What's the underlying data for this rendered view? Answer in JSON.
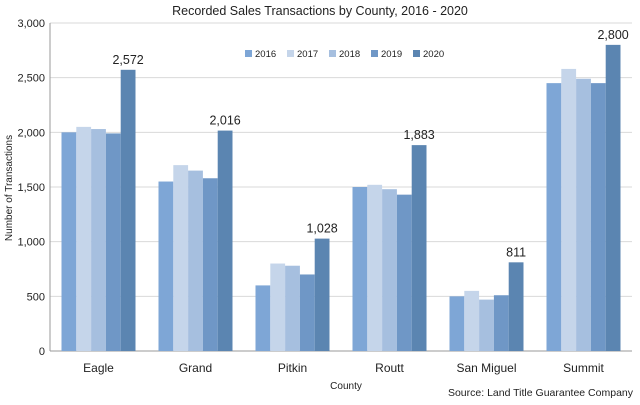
{
  "chart_data": {
    "type": "bar",
    "title": "Recorded Sales Transactions by County, 2016 - 2020",
    "xlabel": "County",
    "ylabel": "Number of Transactions",
    "ylim": [
      0,
      3000
    ],
    "yticks": [
      0,
      500,
      1000,
      1500,
      2000,
      2500,
      3000
    ],
    "ytick_labels": [
      "0",
      "500",
      "1,000",
      "1,500",
      "2,000",
      "2,500",
      "3,000"
    ],
    "grid": true,
    "legend_position": "top-center",
    "categories": [
      "Eagle",
      "Grand",
      "Pitkin",
      "Routt",
      "San Miguel",
      "Summit"
    ],
    "series": [
      {
        "name": "2016",
        "color": "#7ea6d6",
        "values": [
          2000,
          1550,
          600,
          1500,
          500,
          2450
        ]
      },
      {
        "name": "2017",
        "color": "#c5d5ea",
        "values": [
          2050,
          1700,
          800,
          1520,
          550,
          2580
        ]
      },
      {
        "name": "2018",
        "color": "#a6bfdf",
        "values": [
          2030,
          1650,
          780,
          1480,
          470,
          2490
        ]
      },
      {
        "name": "2019",
        "color": "#6f97c6",
        "values": [
          1990,
          1580,
          700,
          1430,
          510,
          2450
        ]
      },
      {
        "name": "2020",
        "color": "#5b85b1",
        "values": [
          2572,
          2016,
          1028,
          1883,
          811,
          2800
        ]
      }
    ],
    "data_labels": [
      {
        "series": "2020",
        "category": "Eagle",
        "text": "2,572"
      },
      {
        "series": "2020",
        "category": "Grand",
        "text": "2,016"
      },
      {
        "series": "2020",
        "category": "Pitkin",
        "text": "1,028"
      },
      {
        "series": "2020",
        "category": "Routt",
        "text": "1,883"
      },
      {
        "series": "2020",
        "category": "San Miguel",
        "text": "811"
      },
      {
        "series": "2020",
        "category": "Summit",
        "text": "2,800"
      }
    ],
    "source": "Source: Land Title Guarantee Company"
  }
}
